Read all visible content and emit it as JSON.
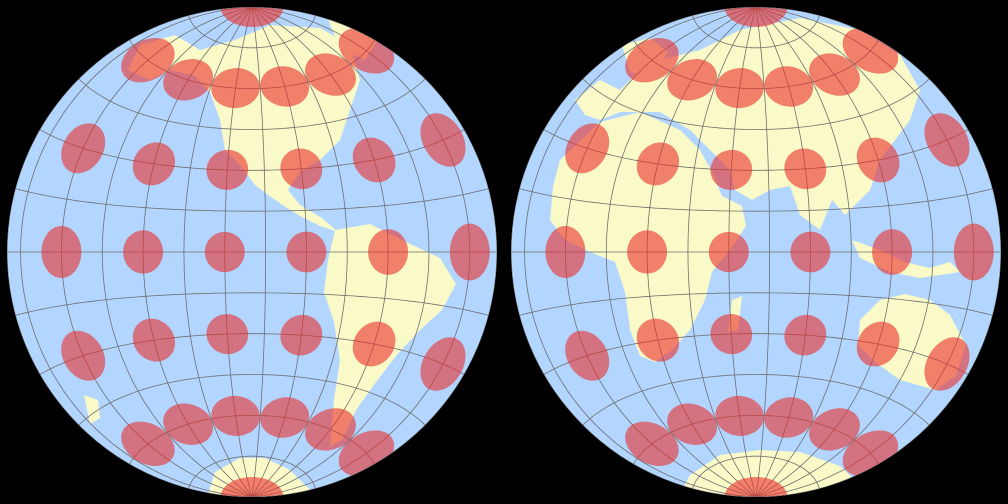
{
  "colors": {
    "background": "#000000",
    "ocean": "#b2d6ff",
    "land": "#fafac8",
    "graticule": "#6f6f6f",
    "tissot": "#e92f2b",
    "tissot_opacity": 0.6
  },
  "map": {
    "hemispheres": [
      "western",
      "eastern"
    ],
    "graticule_step_deg": 15,
    "tissot_step_deg": 30,
    "tissot_latitudes": [
      -90,
      -60,
      -30,
      0,
      30,
      60,
      90
    ]
  }
}
